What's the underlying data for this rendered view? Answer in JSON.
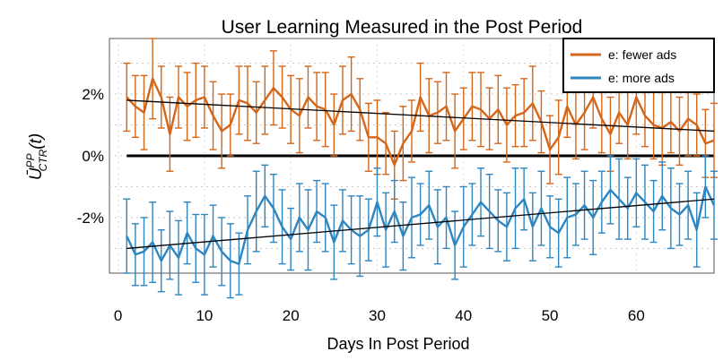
{
  "chart_data": {
    "type": "line",
    "title": "User Learning Measured in the Post Period",
    "xlabel": "Days In Post Period",
    "ylabel": {
      "base": "Ū",
      "sup": "PP",
      "sub": "CTR",
      "arg": "(t)"
    },
    "xlim": [
      -1,
      69
    ],
    "ylim": [
      -3.8,
      3.8
    ],
    "x_ticks": [
      0,
      10,
      20,
      30,
      40,
      50,
      60
    ],
    "y_ticks": [
      {
        "value": 2,
        "label": "2%"
      },
      {
        "value": 0,
        "label": "0%"
      },
      {
        "value": -2,
        "label": "-2%"
      }
    ],
    "grid": "dotted",
    "legend_position": "top-right",
    "colors": {
      "fewer_ads": "#d4661a",
      "more_ads": "#2e86c1",
      "trend": "#000000",
      "zero_line": "#000000"
    },
    "series": [
      {
        "name": "e: fewer ads",
        "color": "#d4661a",
        "x": [
          1,
          2,
          3,
          4,
          5,
          6,
          7,
          8,
          9,
          10,
          11,
          12,
          13,
          14,
          15,
          16,
          17,
          18,
          19,
          20,
          21,
          22,
          23,
          24,
          25,
          26,
          27,
          28,
          29,
          30,
          31,
          32,
          33,
          34,
          35,
          36,
          37,
          38,
          39,
          40,
          41,
          42,
          43,
          44,
          45,
          46,
          47,
          48,
          49,
          50,
          51,
          52,
          53,
          54,
          55,
          56,
          57,
          58,
          59,
          60,
          61,
          62,
          63,
          64,
          65,
          66,
          67,
          68,
          69
        ],
        "y": [
          1.9,
          1.6,
          1.4,
          2.5,
          1.9,
          0.7,
          1.9,
          1.6,
          1.8,
          1.9,
          1.3,
          0.8,
          1.0,
          1.8,
          1.7,
          1.4,
          1.8,
          2.2,
          1.9,
          1.5,
          1.3,
          1.9,
          1.6,
          1.5,
          1.0,
          1.8,
          2.0,
          1.5,
          0.6,
          0.6,
          0.4,
          -0.3,
          0.4,
          0.8,
          1.9,
          1.3,
          1.4,
          1.6,
          0.8,
          1.2,
          1.6,
          1.5,
          1.2,
          1.5,
          1.0,
          1.3,
          1.4,
          1.7,
          1.1,
          0.2,
          0.6,
          1.6,
          1.0,
          1.4,
          1.9,
          1.2,
          0.7,
          1.4,
          1.0,
          1.9,
          1.3,
          1.0,
          0.9,
          1.1,
          0.8,
          1.2,
          1.0,
          0.4,
          0.5
        ],
        "err": [
          1.1,
          1.0,
          1.2,
          1.3,
          1.0,
          1.2,
          1.0,
          1.1,
          1.2,
          1.0,
          1.1,
          1.2,
          1.0,
          1.1,
          1.2,
          1.0,
          1.1,
          1.2,
          1.0,
          1.1,
          1.2,
          1.0,
          1.1,
          1.2,
          1.0,
          1.1,
          1.2,
          1.0,
          1.1,
          1.2,
          1.0,
          1.1,
          1.2,
          1.0,
          1.1,
          1.2,
          1.0,
          1.1,
          1.2,
          1.0,
          1.1,
          1.2,
          1.0,
          1.1,
          1.2,
          1.0,
          1.1,
          1.2,
          1.0,
          1.1,
          1.2,
          1.0,
          1.1,
          1.2,
          1.0,
          1.1,
          1.2,
          1.0,
          1.1,
          1.2,
          1.0,
          1.1,
          1.2,
          1.0,
          1.1,
          1.2,
          1.0,
          1.1,
          1.2
        ],
        "trend": [
          [
            1,
            1.8
          ],
          [
            69,
            0.8
          ]
        ]
      },
      {
        "name": "e: more ads",
        "color": "#2e86c1",
        "x": [
          1,
          2,
          3,
          4,
          5,
          6,
          7,
          8,
          9,
          10,
          11,
          12,
          13,
          14,
          15,
          16,
          17,
          18,
          19,
          20,
          21,
          22,
          23,
          24,
          25,
          26,
          27,
          28,
          29,
          30,
          31,
          32,
          33,
          34,
          35,
          36,
          37,
          38,
          39,
          40,
          41,
          42,
          43,
          44,
          45,
          46,
          47,
          48,
          49,
          50,
          51,
          52,
          53,
          54,
          55,
          56,
          57,
          58,
          59,
          60,
          61,
          62,
          63,
          64,
          65,
          66,
          67,
          68,
          69
        ],
        "y": [
          -2.6,
          -3.2,
          -3.1,
          -2.8,
          -3.4,
          -2.9,
          -3.3,
          -2.5,
          -3.0,
          -3.2,
          -2.6,
          -3.1,
          -3.4,
          -3.5,
          -2.4,
          -1.8,
          -1.3,
          -1.7,
          -2.3,
          -2.7,
          -2.0,
          -2.4,
          -1.8,
          -2.0,
          -2.8,
          -2.1,
          -2.4,
          -2.6,
          -2.4,
          -1.5,
          -2.4,
          -1.8,
          -2.6,
          -2.0,
          -1.9,
          -1.6,
          -2.3,
          -2.0,
          -2.9,
          -2.3,
          -1.9,
          -1.5,
          -1.8,
          -2.1,
          -2.3,
          -1.7,
          -1.4,
          -2.3,
          -1.7,
          -2.3,
          -2.5,
          -2.0,
          -1.9,
          -1.6,
          -2.0,
          -1.5,
          -1.1,
          -1.4,
          -1.7,
          -1.2,
          -1.5,
          -1.8,
          -1.3,
          -1.7,
          -1.9,
          -1.6,
          -2.4,
          -1.0,
          -1.6
        ],
        "err": [
          1.2,
          1.0,
          1.1,
          1.3,
          1.0,
          1.1,
          1.2,
          1.0,
          1.1,
          1.3,
          1.0,
          1.1,
          1.2,
          1.0,
          1.1,
          1.3,
          1.0,
          1.1,
          1.2,
          1.0,
          1.1,
          1.3,
          1.0,
          1.1,
          1.2,
          1.0,
          1.1,
          1.3,
          1.0,
          1.1,
          1.2,
          1.0,
          1.1,
          1.3,
          1.0,
          1.1,
          1.2,
          1.0,
          1.1,
          1.3,
          1.0,
          1.1,
          1.2,
          1.0,
          1.1,
          1.3,
          1.0,
          1.1,
          1.2,
          1.0,
          1.1,
          1.3,
          1.0,
          1.1,
          1.2,
          1.0,
          1.1,
          1.3,
          1.0,
          1.1,
          1.2,
          1.0,
          1.1,
          1.3,
          1.0,
          1.1,
          1.2,
          1.0,
          1.1
        ],
        "trend": [
          [
            1,
            -3.0
          ],
          [
            69,
            -1.4
          ]
        ]
      }
    ]
  }
}
